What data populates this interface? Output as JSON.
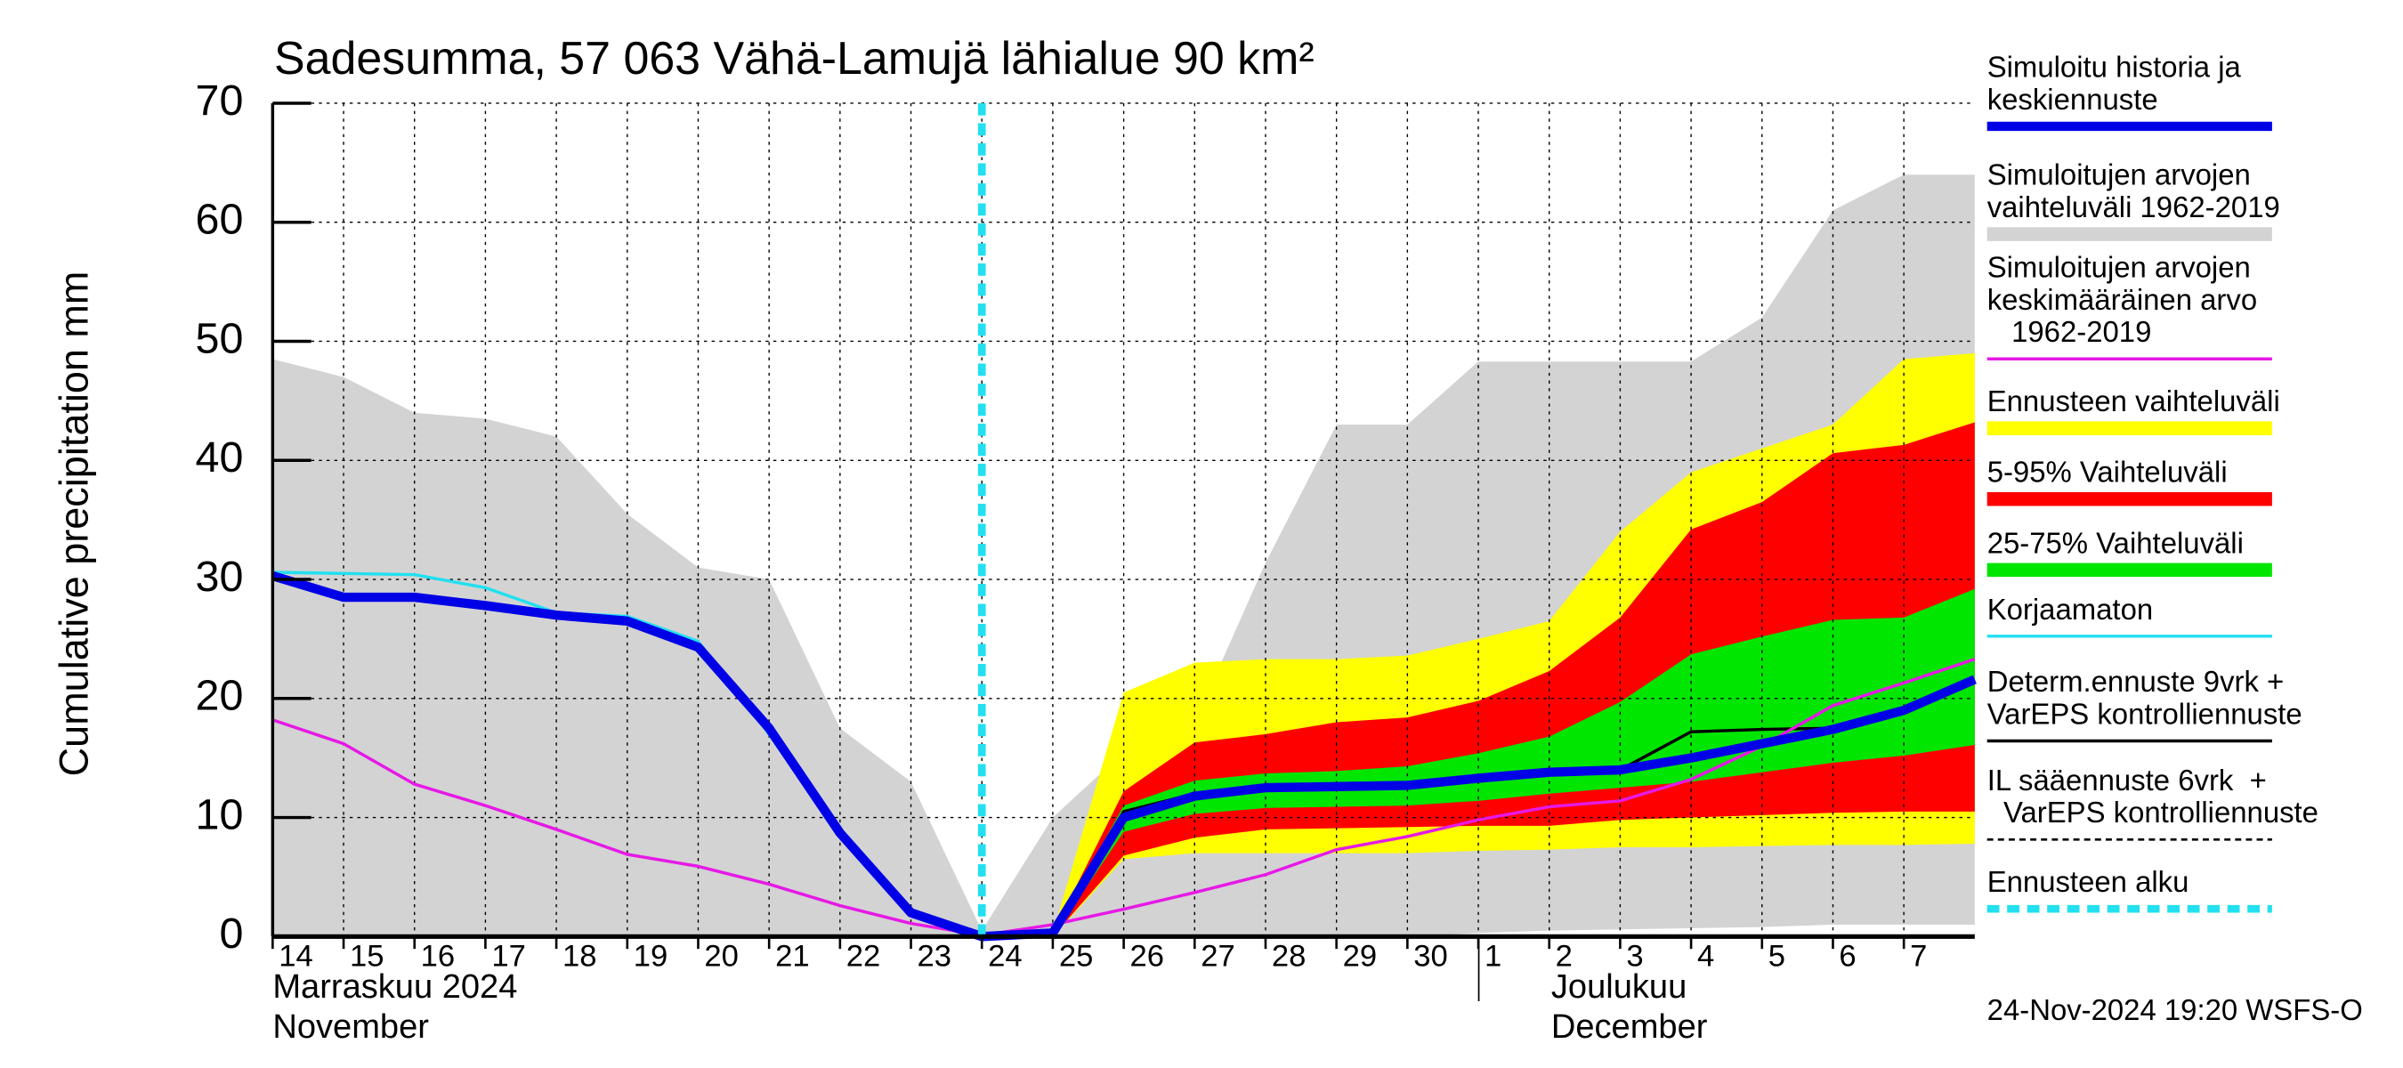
{
  "chart_data": {
    "type": "line",
    "title": "Sadesumma, 57 063 Vähä-Lamujä lähialue 90 km²",
    "y_label": "Cumulative precipitation   mm",
    "month_labels": [
      [
        "Marraskuu 2024",
        "November"
      ],
      [
        "Joulukuu",
        "December"
      ]
    ],
    "footer": "24-Nov-2024 19:20 WSFS-O",
    "x": [
      0,
      1,
      2,
      3,
      4,
      5,
      6,
      7,
      8,
      9,
      10,
      11,
      12,
      13,
      14,
      15,
      16,
      17,
      18,
      19,
      20,
      21,
      22,
      23,
      24
    ],
    "xlim": [
      0,
      24
    ],
    "xticks": [
      {
        "value": 0,
        "label": "14"
      },
      {
        "value": 1,
        "label": "15"
      },
      {
        "value": 2,
        "label": "16"
      },
      {
        "value": 3,
        "label": "17"
      },
      {
        "value": 4,
        "label": "18"
      },
      {
        "value": 5,
        "label": "19"
      },
      {
        "value": 6,
        "label": "20"
      },
      {
        "value": 7,
        "label": "21"
      },
      {
        "value": 8,
        "label": "22"
      },
      {
        "value": 9,
        "label": "23"
      },
      {
        "value": 10,
        "label": "24"
      },
      {
        "value": 11,
        "label": "25"
      },
      {
        "value": 12,
        "label": "26"
      },
      {
        "value": 13,
        "label": "27"
      },
      {
        "value": 14,
        "label": "28"
      },
      {
        "value": 15,
        "label": "29"
      },
      {
        "value": 16,
        "label": "30"
      },
      {
        "value": 17,
        "label": "1"
      },
      {
        "value": 18,
        "label": "2"
      },
      {
        "value": 19,
        "label": "3"
      },
      {
        "value": 20,
        "label": "4"
      },
      {
        "value": 21,
        "label": "5"
      },
      {
        "value": 22,
        "label": "6"
      },
      {
        "value": 23,
        "label": "7"
      }
    ],
    "ylim": [
      0,
      70
    ],
    "yticks": [
      0,
      10,
      20,
      30,
      40,
      50,
      60,
      70
    ],
    "grid": true,
    "series": [
      {
        "name": "Simuloitu historia ja\nkeskiennuste",
        "color": "#0000e6",
        "line_width": 6,
        "values": [
          30.3,
          28.5,
          28.5,
          27.8,
          27,
          26.5,
          24.3,
          17.5,
          8.7,
          2,
          0,
          0.3,
          10,
          11.8,
          12.5,
          12.6,
          12.7,
          13.3,
          13.8,
          14,
          15,
          16.2,
          17.4,
          19,
          21.6
        ]
      },
      {
        "name": "Simuloitujen arvojen\nvaihteluväli 1962-2019",
        "color": "#d3d3d3",
        "upper": [
          48.5,
          47,
          44,
          43.5,
          42,
          35.5,
          31,
          30,
          17.5,
          13,
          0.5,
          10,
          15.5,
          18,
          31.4,
          43,
          43,
          48.3,
          48.3,
          48.3,
          48.3,
          52,
          61,
          64,
          64
        ],
        "lower": [
          0,
          0,
          0,
          0,
          0,
          0,
          0,
          0,
          0,
          0,
          0,
          0,
          0,
          0,
          0,
          0,
          0,
          0.3,
          0.5,
          0.6,
          0.7,
          0.8,
          1,
          1,
          1
        ]
      },
      {
        "name": "Simuloitujen arvojen\nkeskimääräinen arvo\n   1962-2019",
        "color": "#e619e6",
        "line_width": 2,
        "values": [
          18.2,
          16.2,
          12.8,
          11,
          9,
          6.9,
          5.9,
          4.4,
          2.6,
          1.1,
          0.1,
          1,
          2.3,
          3.7,
          5.2,
          7.3,
          8.4,
          9.8,
          10.9,
          11.4,
          13.2,
          16,
          19.4,
          21.3,
          23.3
        ]
      },
      {
        "name": "Ennusteen vaihteluväli",
        "color": "#ffff00",
        "upper": [
          null,
          null,
          null,
          null,
          null,
          null,
          null,
          null,
          null,
          null,
          null,
          0.3,
          20.5,
          23,
          23.3,
          23.3,
          23.6,
          25,
          26.5,
          34,
          39,
          41,
          43,
          48.5,
          49
        ],
        "lower": [
          null,
          null,
          null,
          null,
          null,
          null,
          null,
          null,
          null,
          null,
          null,
          0,
          6.5,
          7,
          7,
          7,
          7,
          7.2,
          7.3,
          7.5,
          7.5,
          7.6,
          7.7,
          7.7,
          7.8
        ]
      },
      {
        "name": "5-95% Vaihteluväli",
        "color": "#ff0000",
        "upper": [
          null,
          null,
          null,
          null,
          null,
          null,
          null,
          null,
          null,
          null,
          null,
          0.3,
          12.2,
          16.3,
          17,
          18,
          18.4,
          19.8,
          22.3,
          26.8,
          34.2,
          36.5,
          40.6,
          41.3,
          43.2
        ],
        "lower": [
          null,
          null,
          null,
          null,
          null,
          null,
          null,
          null,
          null,
          null,
          null,
          0,
          6.8,
          8.3,
          9,
          9.1,
          9.2,
          9.3,
          9.3,
          9.8,
          10,
          10.2,
          10.4,
          10.5,
          10.5
        ]
      },
      {
        "name": "25-75% Vaihteluväli",
        "color": "#00e600",
        "upper": [
          null,
          null,
          null,
          null,
          null,
          null,
          null,
          null,
          null,
          null,
          null,
          0.3,
          11,
          13.1,
          13.7,
          13.9,
          14.3,
          15.4,
          16.8,
          19.7,
          23.7,
          25.2,
          26.6,
          26.8,
          29.2
        ],
        "lower": [
          null,
          null,
          null,
          null,
          null,
          null,
          null,
          null,
          null,
          null,
          null,
          0,
          8.8,
          10.3,
          10.8,
          10.9,
          11,
          11.4,
          12,
          12.5,
          13,
          13.8,
          14.6,
          15.2,
          16.1
        ]
      },
      {
        "name": "Korjaamaton",
        "color": "#22e0f0",
        "line_width": 2,
        "values": [
          30.6,
          30.5,
          30.4,
          29.3,
          27.2,
          26.9,
          24.8,
          17,
          8.5,
          2,
          0,
          null,
          null,
          null,
          null,
          null,
          null,
          null,
          null,
          null,
          null,
          null,
          null,
          null,
          null
        ]
      },
      {
        "name": "Determ.ennuste 9vrk +\nVarEPS kontrolliennuste",
        "color": "#000000",
        "line_width": 2,
        "values": [
          null,
          null,
          null,
          null,
          null,
          null,
          null,
          null,
          null,
          null,
          null,
          0.3,
          10.5,
          12,
          12.5,
          12.6,
          12.7,
          13.3,
          13.9,
          14,
          17.2,
          17.4,
          17.5,
          19,
          21.6
        ]
      }
    ],
    "legend_only": [
      {
        "name": "IL sääennuste 6vrk  +\n  VarEPS kontrolliennuste",
        "color": "#000000",
        "dash": true
      }
    ],
    "forecast_start": {
      "name": "Ennusteen alku",
      "color": "#22e0f0",
      "x": 10
    }
  }
}
